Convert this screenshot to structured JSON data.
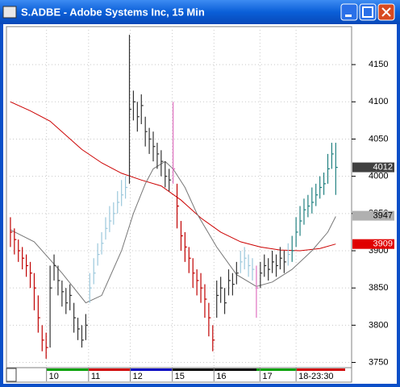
{
  "window": {
    "title": "S.ADBE - Adobe Systems Inc, 15 Min"
  },
  "chart_data": {
    "type": "ohlc",
    "high": [
      3945,
      3930,
      3915,
      3905,
      3895,
      3885,
      3870,
      3840,
      3800,
      3790,
      3880,
      3895,
      3880,
      3860,
      3850,
      3855,
      3830,
      3810,
      3800,
      3815,
      3870,
      3890,
      3910,
      3925,
      3945,
      3960,
      3965,
      3980,
      3995,
      4000,
      4190,
      4115,
      4100,
      4110,
      4080,
      4065,
      4060,
      4045,
      4035,
      4020,
      4010,
      4100,
      3990,
      3940,
      3925,
      3905,
      3890,
      3875,
      3870,
      3855,
      3830,
      3800,
      3860,
      3865,
      3850,
      3875,
      3870,
      3885,
      3900,
      3905,
      3895,
      3890,
      3880,
      3885,
      3895,
      3890,
      3900,
      3895,
      3905,
      3900,
      3910,
      3920,
      3945,
      3960,
      3970,
      3975,
      3985,
      3990,
      4000,
      4005,
      4030,
      4045,
      4045
    ],
    "low": [
      3905,
      3895,
      3885,
      3875,
      3865,
      3850,
      3820,
      3790,
      3765,
      3755,
      3770,
      3860,
      3840,
      3825,
      3815,
      3820,
      3790,
      3780,
      3770,
      3780,
      3830,
      3855,
      3880,
      3895,
      3915,
      3925,
      3935,
      3950,
      3960,
      3970,
      3990,
      4075,
      4060,
      4070,
      4040,
      4030,
      4020,
      4010,
      4000,
      3985,
      3980,
      3990,
      3930,
      3900,
      3885,
      3870,
      3850,
      3840,
      3830,
      3810,
      3785,
      3765,
      3810,
      3830,
      3815,
      3840,
      3840,
      3855,
      3870,
      3875,
      3865,
      3860,
      3810,
      3850,
      3865,
      3860,
      3870,
      3865,
      3875,
      3870,
      3880,
      3885,
      3905,
      3920,
      3935,
      3945,
      3950,
      3960,
      3970,
      3975,
      3990,
      4010,
      3975
    ],
    "close": [
      3925,
      3915,
      3900,
      3890,
      3880,
      3870,
      3850,
      3810,
      3780,
      3770,
      3850,
      3880,
      3860,
      3845,
      3830,
      3840,
      3810,
      3795,
      3780,
      3800,
      3850,
      3870,
      3895,
      3910,
      3930,
      3940,
      3950,
      3965,
      3975,
      3985,
      4090,
      4100,
      4080,
      4095,
      4060,
      4050,
      4040,
      4030,
      4020,
      4000,
      3995,
      4010,
      3960,
      3920,
      3905,
      3890,
      3870,
      3860,
      3850,
      3835,
      3810,
      3780,
      3840,
      3850,
      3830,
      3860,
      3855,
      3870,
      3885,
      3890,
      3880,
      3875,
      3850,
      3870,
      3880,
      3875,
      3885,
      3880,
      3890,
      3885,
      3895,
      3900,
      3925,
      3940,
      3955,
      3960,
      3965,
      3975,
      3985,
      3990,
      4010,
      4030,
      4012
    ],
    "bar_colors": [
      "#c00000",
      "#c00000",
      "#c00000",
      "#c00000",
      "#c00000",
      "#c00000",
      "#c00000",
      "#c00000",
      "#c00000",
      "#c00000",
      "#333333",
      "#333333",
      "#333333",
      "#333333",
      "#333333",
      "#333333",
      "#333333",
      "#333333",
      "#333333",
      "#333333",
      "#9cc8dc",
      "#9cc8dc",
      "#9cc8dc",
      "#9cc8dc",
      "#9cc8dc",
      "#9cc8dc",
      "#9cc8dc",
      "#9cc8dc",
      "#9cc8dc",
      "#9cc8dc",
      "#333333",
      "#333333",
      "#333333",
      "#333333",
      "#333333",
      "#333333",
      "#333333",
      "#333333",
      "#333333",
      "#333333",
      "#333333",
      "#e070c0",
      "#c00000",
      "#c00000",
      "#c00000",
      "#c00000",
      "#c00000",
      "#c00000",
      "#c00000",
      "#c00000",
      "#c00000",
      "#c00000",
      "#333333",
      "#333333",
      "#333333",
      "#333333",
      "#333333",
      "#333333",
      "#9cc8dc",
      "#9cc8dc",
      "#9cc8dc",
      "#9cc8dc",
      "#e070c0",
      "#333333",
      "#333333",
      "#333333",
      "#333333",
      "#333333",
      "#333333",
      "#333333",
      "#9cc8dc",
      "#208080",
      "#208080",
      "#208080",
      "#208080",
      "#208080",
      "#208080",
      "#208080",
      "#208080",
      "#208080",
      "#208080",
      "#208080",
      "#208080"
    ],
    "lines": [
      {
        "color": "#cc0000",
        "x": [
          0,
          5,
          10,
          18,
          23,
          28,
          33,
          38,
          43,
          48,
          53,
          58,
          63,
          68,
          73,
          78,
          82
        ],
        "values": [
          4100,
          4088,
          4074,
          4036,
          4018,
          4004,
          3995,
          3987,
          3968,
          3944,
          3925,
          3912,
          3905,
          3901,
          3900,
          3903,
          3909
        ]
      },
      {
        "color": "#777777",
        "x": [
          0,
          6,
          13,
          19,
          23,
          28,
          31,
          34,
          36,
          39,
          41,
          44,
          47,
          52,
          57,
          62,
          66,
          71,
          76,
          80,
          82
        ],
        "values": [
          3928,
          3912,
          3870,
          3830,
          3840,
          3900,
          3950,
          3990,
          4010,
          4020,
          4010,
          3985,
          3950,
          3905,
          3868,
          3852,
          3858,
          3875,
          3900,
          3925,
          3946
        ]
      }
    ],
    "markers": [
      {
        "value": 4012,
        "color": "#404040",
        "text_color": "#ffffff"
      },
      {
        "value": 3947,
        "color": "#b0b0b0",
        "text_color": "#000000"
      },
      {
        "value": 3909,
        "color": "#e00000",
        "text_color": "#ffffff"
      }
    ],
    "xlim": [
      -1,
      86
    ],
    "xticks": [
      {
        "value": 9.1,
        "label": "10"
      },
      {
        "value": 19.7,
        "label": "11"
      },
      {
        "value": 30.2,
        "label": "12"
      },
      {
        "value": 40.8,
        "label": "15"
      },
      {
        "value": 51.3,
        "label": "16"
      },
      {
        "value": 62.9,
        "label": "17"
      },
      {
        "value": 72.0,
        "label": "18-23:30"
      }
    ],
    "ylim": [
      3743,
      4201
    ],
    "yticks": [
      3750,
      3800,
      3850,
      3900,
      3950,
      4000,
      4050,
      4100,
      4150
    ],
    "grid": true
  }
}
